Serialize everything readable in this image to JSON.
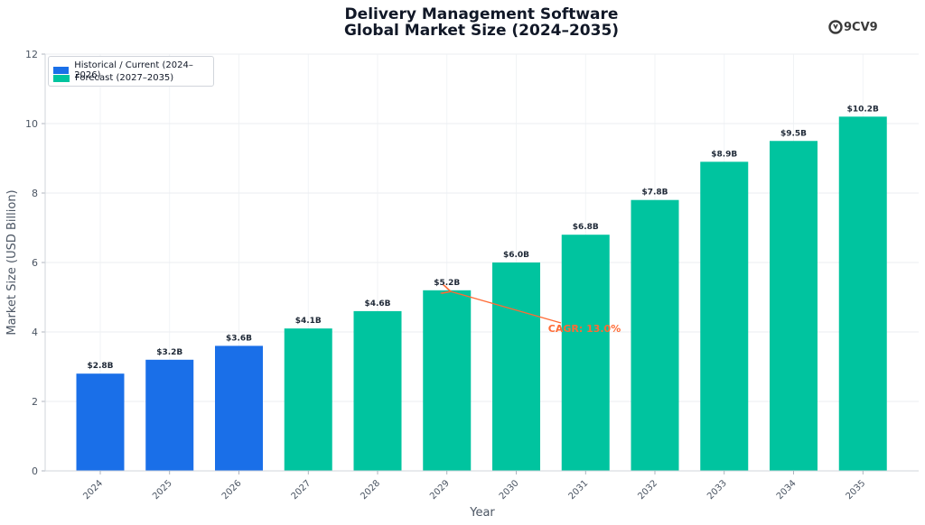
{
  "chart_data": {
    "type": "bar",
    "title": "Delivery Management Software",
    "subtitle": "Global Market Size (2024–2035)",
    "xlabel": "Year",
    "ylabel": "Market Size (USD Billion)",
    "ylim": [
      0,
      12
    ],
    "yticks": [
      "0",
      "2",
      "4",
      "6",
      "8",
      "10",
      "12"
    ],
    "categories": [
      "2024",
      "2025",
      "2026",
      "2027",
      "2028",
      "2029",
      "2030",
      "2031",
      "2032",
      "2033",
      "2034",
      "2035"
    ],
    "values": [
      2.8,
      3.2,
      3.6,
      4.1,
      4.6,
      5.2,
      6.0,
      6.8,
      7.8,
      8.9,
      9.5,
      10.2
    ],
    "data_labels": [
      "$2.8B",
      "$3.2B",
      "$3.6B",
      "$4.1B",
      "$4.6B",
      "$5.2B",
      "$6.0B",
      "$6.8B",
      "$7.8B",
      "$8.9B",
      "$9.5B",
      "$10.2B"
    ],
    "series": [
      {
        "name": "Historical / Current (2024–2026)",
        "color": "#1a6fe8",
        "categories": [
          "2024",
          "2025",
          "2026"
        ]
      },
      {
        "name": "Forecast (2027–2035)",
        "color": "#00c49f",
        "categories": [
          "2027",
          "2028",
          "2029",
          "2030",
          "2031",
          "2032",
          "2033",
          "2034",
          "2035"
        ]
      }
    ],
    "annotation": {
      "text": "CAGR: 13.0%",
      "points_to": "2029",
      "color": "#ff6b35"
    },
    "grid": true,
    "legend_position": "top-left"
  },
  "logo": {
    "text": "9CV9",
    "icon": "9cv9-logo-icon"
  }
}
